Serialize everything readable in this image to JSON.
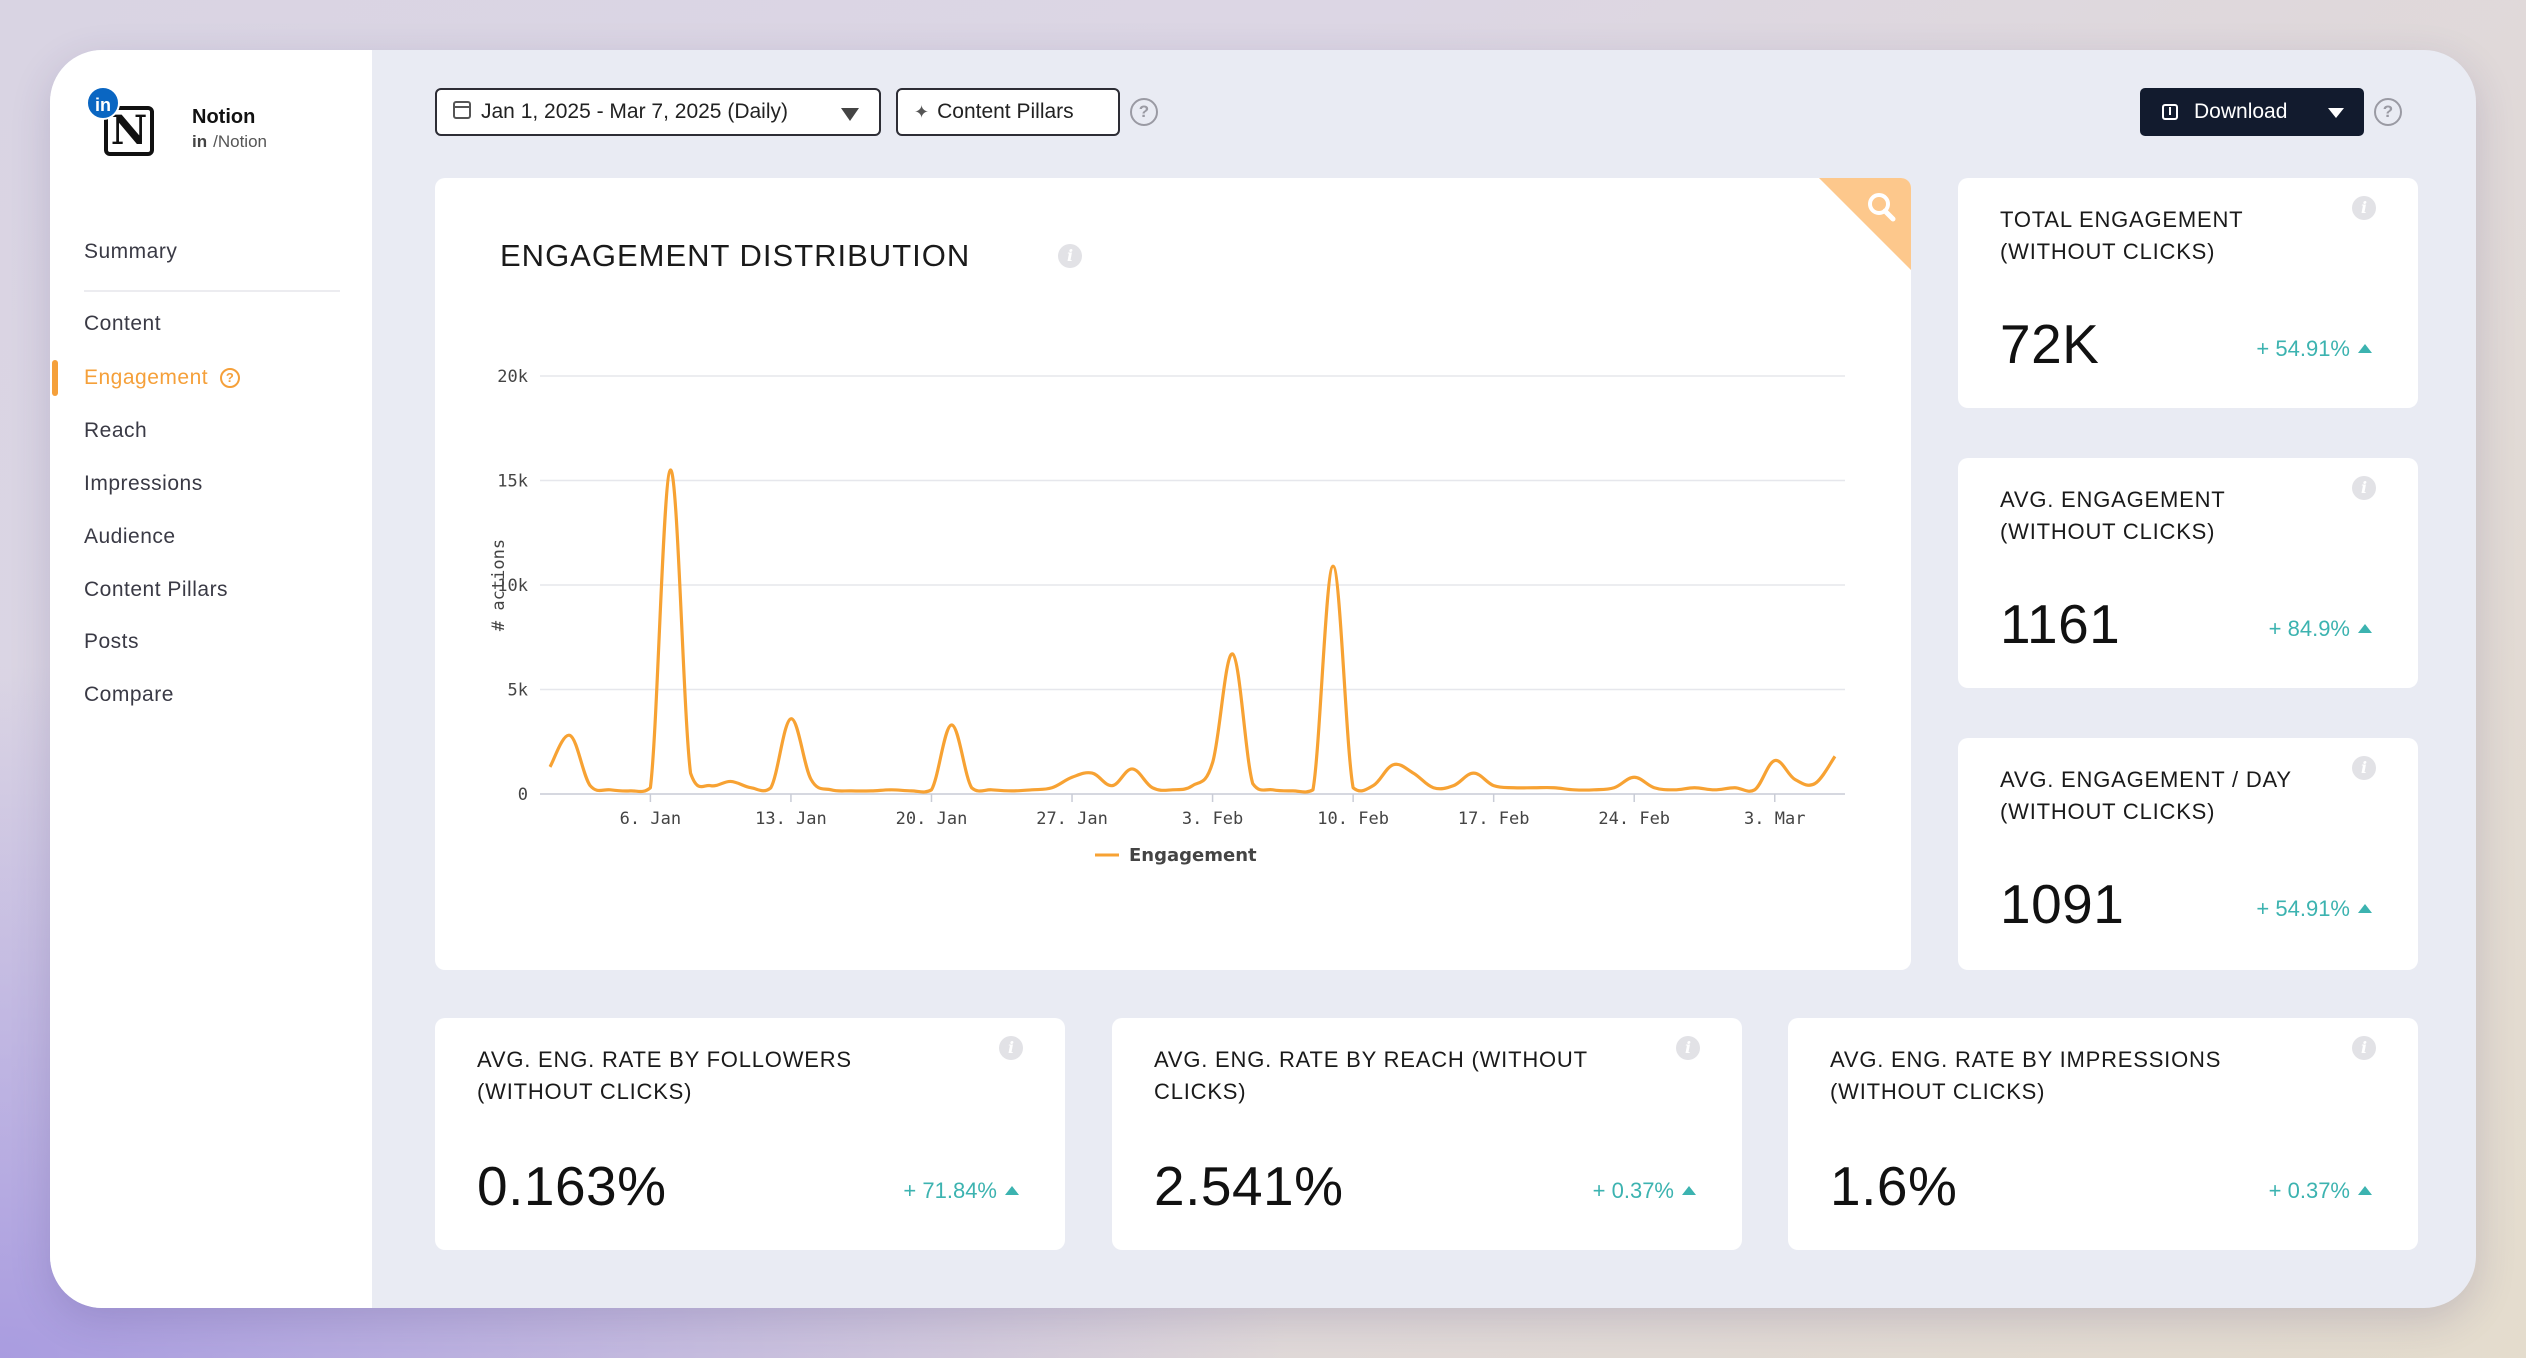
{
  "brand": {
    "name": "Notion",
    "handle_prefix": "in",
    "handle": "/Notion",
    "logo_letter": "N",
    "badge_text": "in"
  },
  "sidebar": {
    "items": [
      {
        "label": "Summary"
      },
      {
        "label": "Content"
      },
      {
        "label": "Engagement",
        "active": true
      },
      {
        "label": "Reach"
      },
      {
        "label": "Impressions"
      },
      {
        "label": "Audience"
      },
      {
        "label": "Content Pillars"
      },
      {
        "label": "Posts"
      },
      {
        "label": "Compare"
      }
    ]
  },
  "toolbar": {
    "date_range": "Jan 1, 2025 - Mar 7, 2025 (Daily)",
    "pillars_label": "Content Pillars",
    "download_label": "Download",
    "help_glyph": "?"
  },
  "chart_card": {
    "title": "ENGAGEMENT DISTRIBUTION",
    "info_glyph": "i"
  },
  "chart_data": {
    "type": "line",
    "title": "ENGAGEMENT DISTRIBUTION",
    "ylabel": "# actions",
    "xlabel": "",
    "ylim": [
      0,
      20000
    ],
    "yticks": [
      0,
      5000,
      10000,
      15000,
      20000
    ],
    "ytick_labels": [
      "0",
      "5k",
      "10k",
      "15k",
      "20k"
    ],
    "xticks": [
      "6. Jan",
      "13. Jan",
      "20. Jan",
      "27. Jan",
      "3. Feb",
      "10. Feb",
      "17. Feb",
      "24. Feb",
      "3. Mar"
    ],
    "xtick_days": [
      5,
      12,
      19,
      26,
      33,
      40,
      47,
      54,
      61
    ],
    "legend_position": "bottom-center",
    "grid": true,
    "series": [
      {
        "name": "Engagement",
        "color": "#f7a233",
        "x_start": "2025-01-01",
        "values": [
          1300,
          2800,
          400,
          200,
          150,
          300,
          15500,
          1000,
          400,
          600,
          300,
          300,
          3600,
          700,
          200,
          150,
          150,
          200,
          150,
          200,
          3300,
          300,
          200,
          150,
          200,
          300,
          800,
          1000,
          400,
          1200,
          300,
          200,
          400,
          1500,
          6700,
          500,
          200,
          150,
          200,
          10900,
          300,
          400,
          1400,
          1000,
          300,
          400,
          1000,
          400,
          300,
          300,
          300,
          200,
          200,
          300,
          800,
          300,
          200,
          300,
          200,
          300,
          200,
          1600,
          700,
          500,
          1800
        ]
      }
    ]
  },
  "stats": [
    {
      "title": "TOTAL ENGAGEMENT (WITHOUT CLICKS)",
      "value": "72K",
      "change": "+ 54.91%"
    },
    {
      "title": "AVG. ENGAGEMENT (WITHOUT CLICKS)",
      "value": "1161",
      "change": "+ 84.9%"
    },
    {
      "title": "AVG. ENGAGEMENT / DAY (WITHOUT CLICKS)",
      "value": "1091",
      "change": "+ 54.91%"
    },
    {
      "title": "AVG. ENG. RATE BY FOLLOWERS (WITHOUT CLICKS)",
      "value": "0.163%",
      "change": "+ 71.84%"
    },
    {
      "title": "AVG. ENG. RATE BY REACH (WITHOUT CLICKS)",
      "value": "2.541%",
      "change": "+ 0.37%"
    },
    {
      "title": "AVG. ENG. RATE BY IMPRESSIONS (WITHOUT CLICKS)",
      "value": "1.6%",
      "change": "+ 0.37%"
    }
  ],
  "colors": {
    "accent": "#f5a03a",
    "positive": "#3cb3b0",
    "dark_button": "#121b2e"
  }
}
